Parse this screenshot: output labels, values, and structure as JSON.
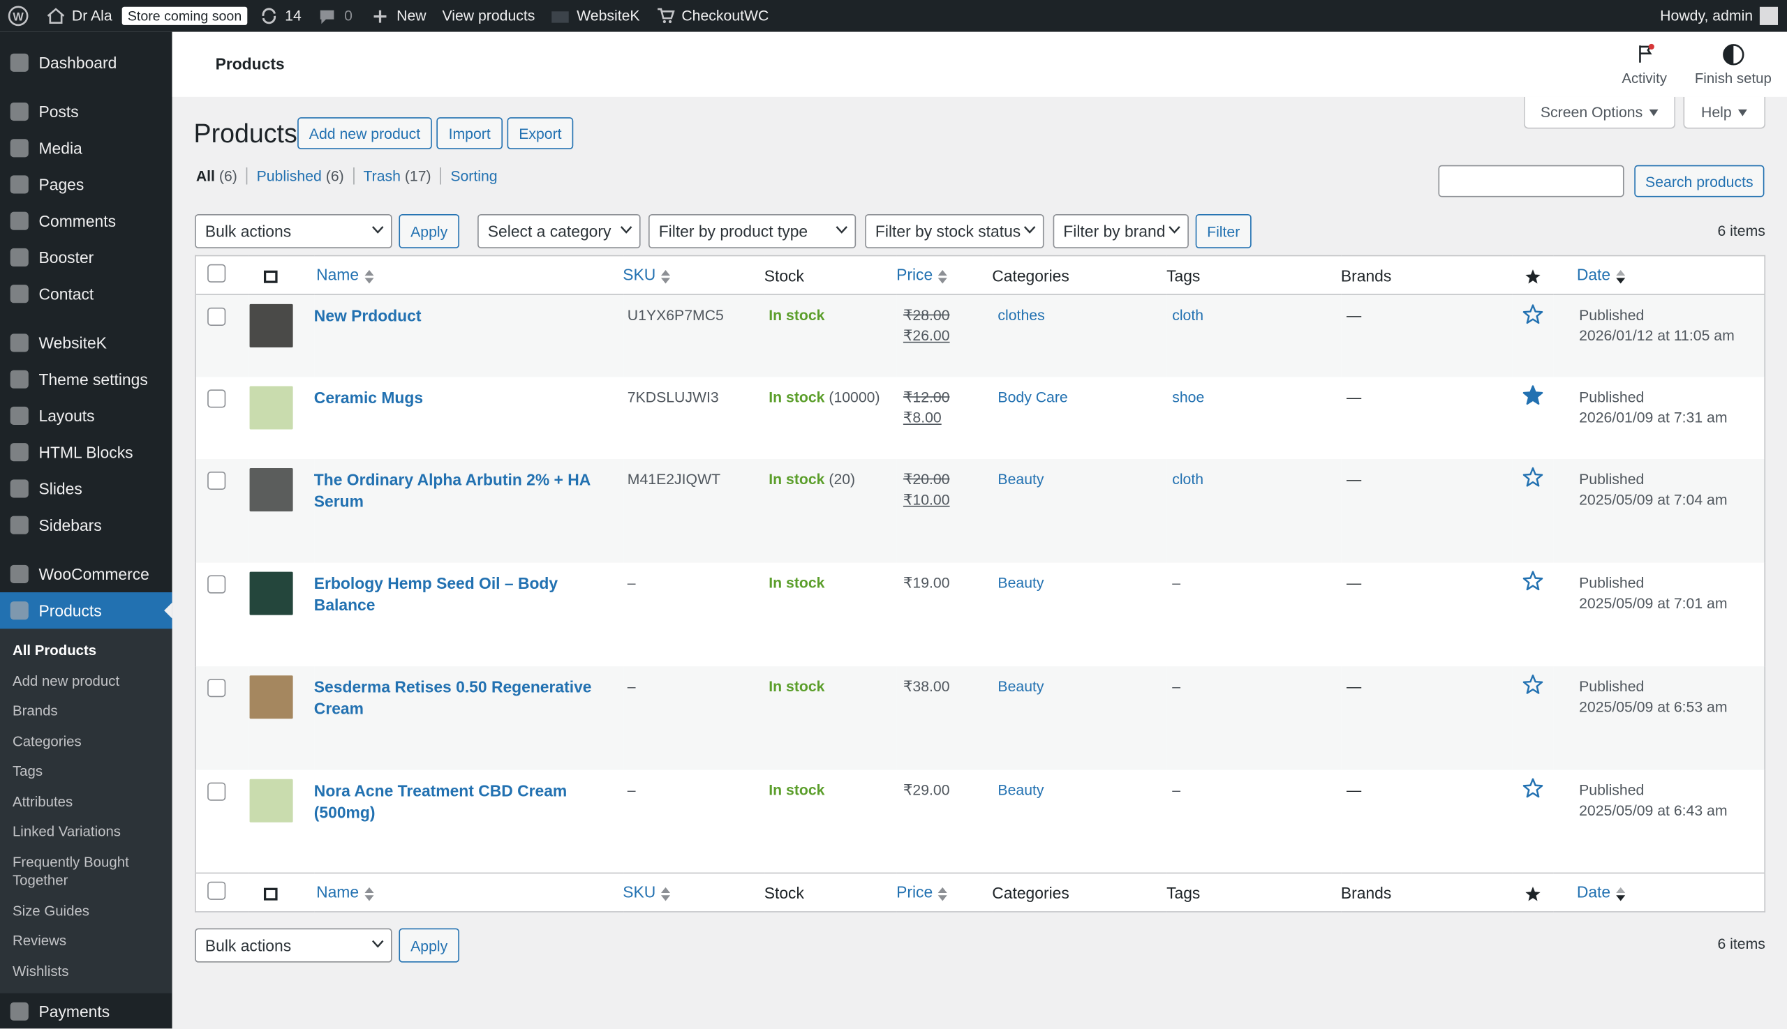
{
  "admin_bar": {
    "site": "Dr Ala",
    "store_badge": "Store coming soon",
    "updates": "14",
    "comments": "0",
    "new": "New",
    "view_products": "View products",
    "websitek": "WebsiteK",
    "checkout": "CheckoutWC",
    "howdy": "Howdy, admin"
  },
  "menu": {
    "items": [
      "Dashboard",
      "Posts",
      "Media",
      "Pages",
      "Comments",
      "Booster",
      "Contact",
      "WebsiteK",
      "Theme settings",
      "Layouts",
      "HTML Blocks",
      "Slides",
      "Sidebars",
      "WooCommerce",
      "Products"
    ],
    "submenu": [
      "All Products",
      "Add new product",
      "Brands",
      "Categories",
      "Tags",
      "Attributes",
      "Linked Variations",
      "Frequently Bought Together",
      "Size Guides",
      "Reviews",
      "Wishlists"
    ],
    "after": [
      "Payments"
    ]
  },
  "header": {
    "title": "Products",
    "activity": "Activity",
    "finish_setup": "Finish setup"
  },
  "page": {
    "title": "Products",
    "buttons": [
      "Add new product",
      "Import",
      "Export"
    ],
    "screen_options": "Screen Options",
    "help": "Help",
    "views": [
      {
        "label": "All",
        "count": "(6)"
      },
      {
        "label": "Published",
        "count": "(6)"
      },
      {
        "label": "Trash",
        "count": "(17)"
      },
      {
        "label": "Sorting"
      }
    ],
    "search_button": "Search products",
    "bulk_actions": "Bulk actions",
    "apply": "Apply",
    "filters": [
      "Select a category",
      "Filter by product type",
      "Filter by stock status",
      "Filter by brand"
    ],
    "filter_button": "Filter",
    "items_count": "6 items"
  },
  "table": {
    "columns": {
      "name": "Name",
      "sku": "SKU",
      "stock": "Stock",
      "price": "Price",
      "categories": "Categories",
      "tags": "Tags",
      "brands": "Brands",
      "date": "Date"
    },
    "rows": [
      {
        "name": "New Prdoduct",
        "thumb_color": "#4a4a48",
        "sku": "U1YX6P7MC5",
        "stock": "In stock",
        "regular_price": "₹28.00",
        "sale_price": "₹26.00",
        "categories": "clothes",
        "tags": "cloth",
        "brands": "—",
        "featured": false,
        "status": "Published",
        "date": "2026/01/12 at 11:05 am"
      },
      {
        "name": "Ceramic Mugs",
        "thumb_color": "#c9dcae",
        "sku": "7KDSLUJWI3",
        "stock": "In stock",
        "stock_qty": "(10000)",
        "regular_price": "₹12.00",
        "sale_price": "₹8.00",
        "categories": "Body Care",
        "tags": "shoe",
        "brands": "—",
        "featured": true,
        "status": "Published",
        "date": "2026/01/09 at 7:31 am"
      },
      {
        "name": "The Ordinary Alpha Arbutin 2% + HA Serum",
        "thumb_color": "#5b5d5c",
        "sku": "M41E2JIQWT",
        "stock": "In stock",
        "stock_qty": "(20)",
        "regular_price": "₹20.00",
        "sale_price": "₹10.00",
        "categories": "Beauty",
        "tags": "cloth",
        "brands": "—",
        "featured": false,
        "status": "Published",
        "date": "2025/05/09 at 7:04 am"
      },
      {
        "name": "Erbology Hemp Seed Oil – Body Balance",
        "thumb_color": "#24463c",
        "sku": "–",
        "stock": "In stock",
        "price": "₹19.00",
        "categories": "Beauty",
        "tags": "–",
        "brands": "—",
        "featured": false,
        "status": "Published",
        "date": "2025/05/09 at 7:01 am"
      },
      {
        "name": "Sesderma Retises 0.50 Regenerative Cream",
        "thumb_color": "#a5875f",
        "sku": "–",
        "stock": "In stock",
        "price": "₹38.00",
        "categories": "Beauty",
        "tags": "–",
        "brands": "—",
        "featured": false,
        "status": "Published",
        "date": "2025/05/09 at 6:53 am"
      },
      {
        "name": "Nora Acne Treatment CBD Cream (500mg)",
        "thumb_color": "#c9dcae",
        "sku": "–",
        "stock": "In stock",
        "price": "₹29.00",
        "categories": "Beauty",
        "tags": "–",
        "brands": "—",
        "featured": false,
        "status": "Published",
        "date": "2025/05/09 at 6:43 am"
      }
    ]
  }
}
